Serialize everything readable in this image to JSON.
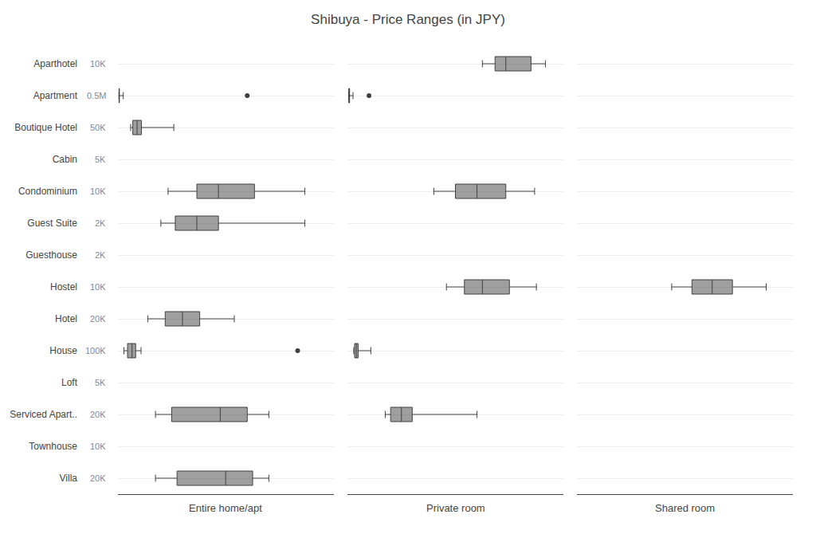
{
  "chart_data": {
    "type": "box",
    "orientation": "horizontal",
    "title": "Shibuya - Price Ranges (in JPY)",
    "categories": [
      "Aparthotel",
      "Apartment",
      "Boutique Hotel",
      "Cabin",
      "Condominium",
      "Guest Suite",
      "Guesthouse",
      "Hostel",
      "Hotel",
      "House",
      "Loft",
      "Serviced Apart..",
      "Townhouse",
      "Villa"
    ],
    "columns": [
      "Entire home/apt",
      "Private room",
      "Shared room"
    ],
    "annotations": [
      {
        "text": "10K",
        "y": "Aparthotel"
      },
      {
        "text": "0.5M",
        "y": "Apartment"
      },
      {
        "text": "50K",
        "y": "Boutique Hotel"
      },
      {
        "text": "5K",
        "y": "Cabin"
      },
      {
        "text": "10K",
        "y": "Condominium"
      },
      {
        "text": "2K",
        "y": "Guest Suite"
      },
      {
        "text": "2K",
        "y": "Guesthouse"
      },
      {
        "text": "10K",
        "y": "Hostel"
      },
      {
        "text": "20K",
        "y": "Hotel"
      },
      {
        "text": "100K",
        "y": "House"
      },
      {
        "text": "5K",
        "y": "Loft"
      },
      {
        "text": "20K",
        "y": "Serviced Apart.."
      },
      {
        "text": "10K",
        "y": "Townhouse"
      },
      {
        "text": "20K",
        "y": "Villa"
      }
    ],
    "color": "#404040",
    "grid": true,
    "panels": [
      {
        "row": "Aparthotel",
        "column": "Private room",
        "whislo": 7500,
        "q1": 8200,
        "med": 8800,
        "q3": 10200,
        "whishi": 11000,
        "fliers": [],
        "xlim": [
          0,
          12000
        ],
        "xticks": []
      },
      {
        "row": "Apartment",
        "column": "Entire home/apt",
        "whislo": 3000,
        "q1": 3200,
        "med": 3500,
        "q3": 4000,
        "whishi": 13000,
        "fliers": [
          300000
        ],
        "xlim": [
          0,
          500000
        ],
        "xticks": []
      },
      {
        "row": "Apartment",
        "column": "Private room",
        "whislo": 3000,
        "q1": 3200,
        "med": 3800,
        "q3": 5000,
        "whishi": 13000,
        "fliers": [
          50000
        ],
        "xlim": [
          0,
          500000
        ],
        "xticks": []
      },
      {
        "row": "Boutique Hotel",
        "column": "Entire home/apt",
        "whislo": 3000,
        "q1": 3500,
        "med": 4500,
        "q3": 5500,
        "whishi": 13000,
        "fliers": [],
        "xlim": [
          0,
          50000
        ],
        "xticks": []
      },
      {
        "row": "Condominium",
        "column": "Entire home/apt",
        "whislo": 3500,
        "q1": 5500,
        "med": 7000,
        "q3": 9500,
        "whishi": 13000,
        "fliers": [],
        "xlim": [
          0,
          15000
        ],
        "xticks": []
      },
      {
        "row": "Condominium",
        "column": "Private room",
        "whislo": 6000,
        "q1": 7500,
        "med": 9000,
        "q3": 11000,
        "whishi": 13000,
        "fliers": [],
        "xlim": [
          0,
          15000
        ],
        "xticks": []
      },
      {
        "row": "Guest Suite",
        "column": "Entire home/apt",
        "whislo": 3000,
        "q1": 4000,
        "med": 5500,
        "q3": 7000,
        "whishi": 13000,
        "fliers": [],
        "xlim": [
          0,
          15000
        ],
        "xticks": []
      },
      {
        "row": "Hostel",
        "column": "Private room",
        "whislo": 5500,
        "q1": 6500,
        "med": 7500,
        "q3": 9000,
        "whishi": 10500,
        "fliers": [],
        "xlim": [
          0,
          12000
        ],
        "xticks": []
      },
      {
        "row": "Hostel",
        "column": "Shared room",
        "whislo": 7000,
        "q1": 8500,
        "med": 10000,
        "q3": 11500,
        "whishi": 14000,
        "fliers": [],
        "xlim": [
          0,
          16000
        ],
        "xticks": []
      },
      {
        "row": "Hotel",
        "column": "Entire home/apt",
        "whislo": 3500,
        "q1": 5500,
        "med": 7500,
        "q3": 9500,
        "whishi": 13500,
        "fliers": [],
        "xlim": [
          0,
          25000
        ],
        "xticks": []
      },
      {
        "row": "House",
        "column": "Entire home/apt",
        "whislo": 3500,
        "q1": 5500,
        "med": 8000,
        "q3": 10000,
        "whishi": 13000,
        "fliers": [
          100000
        ],
        "xlim": [
          0,
          120000
        ],
        "xticks": []
      },
      {
        "row": "House",
        "column": "Private room",
        "whislo": 3500,
        "q1": 4000,
        "med": 5000,
        "q3": 6000,
        "whishi": 13000,
        "fliers": [],
        "xlim": [
          0,
          120000
        ],
        "xticks": []
      },
      {
        "row": "Serviced Apart..",
        "column": "Entire home/apt",
        "whislo": 3500,
        "q1": 5000,
        "med": 9500,
        "q3": 12000,
        "whishi": 14000,
        "fliers": [],
        "xlim": [
          0,
          20000
        ],
        "xticks": []
      },
      {
        "row": "Serviced Apart..",
        "column": "Private room",
        "whislo": 3500,
        "q1": 4000,
        "med": 5000,
        "q3": 6000,
        "whishi": 12000,
        "fliers": [],
        "xlim": [
          0,
          20000
        ],
        "xticks": []
      },
      {
        "row": "Villa",
        "column": "Entire home/apt",
        "whislo": 3500,
        "q1": 5500,
        "med": 10000,
        "q3": 12500,
        "whishi": 14000,
        "fliers": [],
        "xlim": [
          0,
          20000
        ],
        "xticks": []
      }
    ]
  }
}
